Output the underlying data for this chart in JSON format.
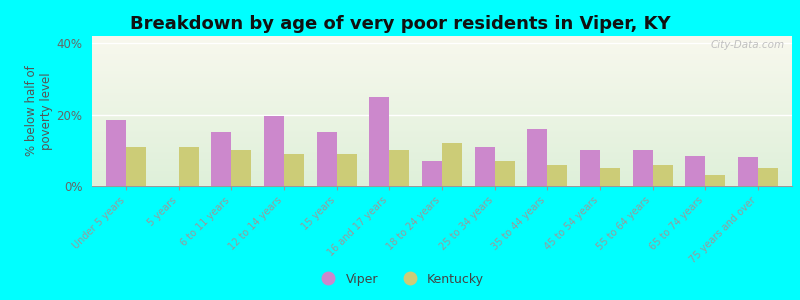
{
  "title": "Breakdown by age of very poor residents in Viper, KY",
  "categories": [
    "Under 5 years",
    "5 years",
    "6 to 11 years",
    "12 to 14 years",
    "15 years",
    "16 and 17 years",
    "18 to 24 years",
    "25 to 34 years",
    "35 to 44 years",
    "45 to 54 years",
    "55 to 64 years",
    "65 to 74 years",
    "75 years and over"
  ],
  "viper_values": [
    18.5,
    0,
    15,
    19.5,
    15,
    25,
    7,
    11,
    16,
    10,
    10,
    8.5,
    8
  ],
  "kentucky_values": [
    11,
    11,
    10,
    9,
    9,
    10,
    12,
    7,
    6,
    5,
    6,
    3,
    5
  ],
  "viper_color": "#cc88cc",
  "kentucky_color": "#cccc77",
  "ylabel": "% below half of\npoverty level",
  "ylim": [
    0,
    42
  ],
  "yticks": [
    0,
    20,
    40
  ],
  "ytick_labels": [
    "0%",
    "20%",
    "40%"
  ],
  "background_color": "#00ffff",
  "watermark": "City-Data.com",
  "title_fontsize": 13,
  "axis_label_fontsize": 8.5,
  "tick_label_fontsize": 7,
  "legend_fontsize": 9
}
